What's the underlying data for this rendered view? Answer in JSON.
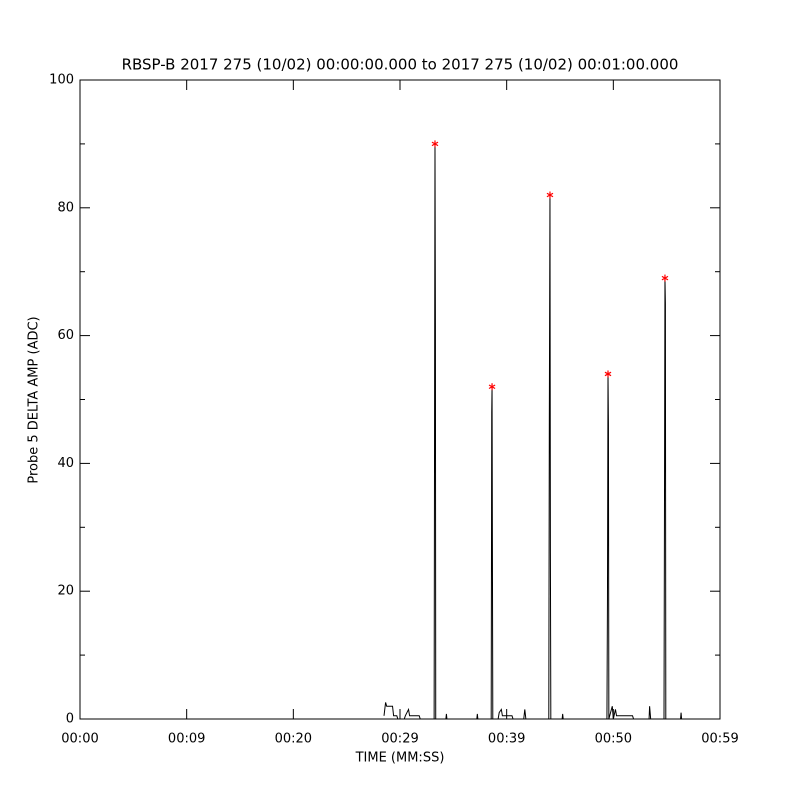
{
  "chart_data": {
    "type": "line",
    "title": "RBSP-B 2017 275 (10/02) 00:00:00.000 to 2017 275 (10/02) 00:01:00.000",
    "ylabel": "Probe 5 DELTA AMP (ADC)",
    "xlabel": "TIME (MM:SS)",
    "xlim": [
      0,
      60
    ],
    "ylim": [
      0,
      100
    ],
    "xticks": [
      {
        "value": 0,
        "label": "00:00"
      },
      {
        "value": 10,
        "label": "00:09"
      },
      {
        "value": 20,
        "label": "00:20"
      },
      {
        "value": 30,
        "label": "00:29"
      },
      {
        "value": 40,
        "label": "00:39"
      },
      {
        "value": 50,
        "label": "00:50"
      },
      {
        "value": 60,
        "label": "00:59"
      }
    ],
    "yticks": [
      0,
      20,
      40,
      60,
      80,
      100
    ],
    "series": [
      {
        "color": "#000000",
        "x": [
          28.5,
          28.65,
          28.75,
          29.3,
          29.4,
          29.7,
          29.8,
          30.4,
          30.5,
          30.8,
          30.9,
          31.8,
          31.9,
          33.2,
          33.25,
          33.28,
          33.32,
          33.35,
          34.3,
          34.35,
          34.4,
          37.2,
          37.25,
          37.3,
          38.55,
          38.6,
          38.63,
          38.67,
          38.7,
          39.2,
          39.3,
          39.5,
          39.6,
          40.5,
          40.6,
          41.6,
          41.7,
          41.8,
          43.95,
          44.0,
          44.06,
          44.1,
          44.14,
          45.2,
          45.25,
          45.3,
          49.4,
          49.45,
          49.5,
          49.54,
          49.58,
          49.9,
          50.0,
          50.2,
          50.3,
          51.8,
          51.9,
          53.35,
          53.4,
          53.5,
          54.75,
          54.8,
          54.84,
          54.88,
          54.92,
          56.3,
          56.35,
          56.4
        ],
        "values": [
          0.5,
          2.6,
          2,
          2,
          0.5,
          0.5,
          0,
          0,
          0.5,
          1.5,
          0.5,
          0.5,
          0,
          0,
          58,
          90,
          62,
          0,
          0,
          0.8,
          0,
          0,
          0.8,
          0,
          0,
          48,
          52,
          22,
          0,
          0,
          1,
          1.5,
          0.5,
          0.5,
          0,
          0,
          1.5,
          0,
          0,
          47,
          82,
          26,
          0,
          0,
          0.8,
          0,
          0,
          19,
          54,
          46,
          0,
          2,
          0,
          1.5,
          0.5,
          0.5,
          0,
          0,
          2,
          0,
          0,
          37,
          69,
          65,
          0,
          0,
          1,
          0
        ]
      },
      {
        "color": "#ff0000",
        "marker": "asterisk",
        "x": [
          33.28,
          38.63,
          44.06,
          49.5,
          54.84
        ],
        "values": [
          90,
          52,
          82,
          54,
          69
        ]
      }
    ]
  }
}
